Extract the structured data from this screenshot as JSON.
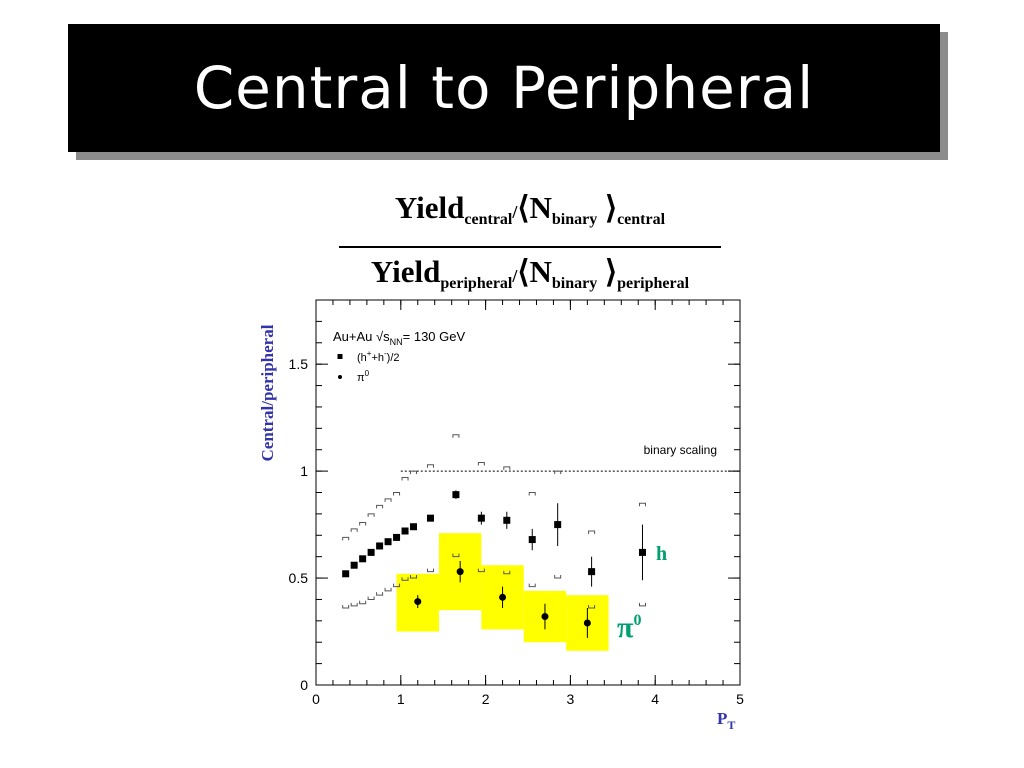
{
  "slide": {
    "title": "Central to Peripheral"
  },
  "formula": {
    "num_main": "Yield",
    "num_sub": "central",
    "num_slash": "/",
    "num_n": "⟨N",
    "num_n_sub": "binary",
    "num_close": " ⟩",
    "num_close_sub": "central",
    "den_main": "Yield",
    "den_sub": "peripheral",
    "den_slash": "/",
    "den_n": "⟨N",
    "den_n_sub": "binary",
    "den_close": " ⟩",
    "den_close_sub": "peripheral"
  },
  "chart_data": {
    "type": "scatter",
    "title": "",
    "ylabel": "Central/peripheral",
    "xlabel_main": "P",
    "xlabel_sub": "T",
    "xlim": [
      0,
      5
    ],
    "ylim": [
      0,
      1.8
    ],
    "x_ticks": [
      "0",
      "1",
      "2",
      "3",
      "4",
      "5"
    ],
    "y_ticks": [
      "0",
      "0.5",
      "1",
      "1.5"
    ],
    "legend": {
      "placement": "top-left",
      "header_prefix": "Au+Au √s",
      "header_sub": "NN",
      "header_suffix": "= 130 GeV",
      "entries": [
        {
          "marker": "square",
          "label_a": "(h",
          "sup_a": "+",
          "label_b": "+h",
          "sup_b": "-",
          "label_c": ")/2"
        },
        {
          "marker": "circle",
          "label_a": "π",
          "sup_a": "0",
          "label_b": "",
          "sup_b": "",
          "label_c": ""
        }
      ]
    },
    "binary_scaling": {
      "label": "binary scaling",
      "y": 1.0,
      "x_from": 1.0,
      "x_to": 5.0
    },
    "annotations": [
      {
        "text": "h",
        "sup": "",
        "color": "#00a070"
      },
      {
        "text": "π",
        "sup": "0",
        "color": "#00a070"
      }
    ],
    "colors": {
      "band": "#ffff00",
      "axis_label": "#3333aa",
      "annotation": "#00a070"
    },
    "series": [
      {
        "name": "(h++h-)/2",
        "marker": "square",
        "x": [
          0.35,
          0.45,
          0.55,
          0.65,
          0.75,
          0.85,
          0.95,
          1.05,
          1.15,
          1.35,
          1.65,
          1.95,
          2.25,
          2.55,
          2.85,
          3.25,
          3.85
        ],
        "y": [
          0.52,
          0.56,
          0.59,
          0.62,
          0.65,
          0.67,
          0.69,
          0.72,
          0.74,
          0.78,
          0.89,
          0.78,
          0.77,
          0.68,
          0.75,
          0.53,
          0.62
        ],
        "err": [
          0.0,
          0.0,
          0.0,
          0.0,
          0.0,
          0.0,
          0.0,
          0.01,
          0.01,
          0.01,
          0.02,
          0.03,
          0.04,
          0.05,
          0.1,
          0.07,
          0.13
        ],
        "sys_hi": [
          0.69,
          0.73,
          0.76,
          0.8,
          0.84,
          0.87,
          0.9,
          0.97,
          1.0,
          1.03,
          1.17,
          1.04,
          1.02,
          0.9,
          1.0,
          0.72,
          0.85
        ],
        "sys_lo": [
          0.36,
          0.37,
          0.38,
          0.4,
          0.42,
          0.44,
          0.46,
          0.49,
          0.5,
          0.53,
          0.6,
          0.53,
          0.52,
          0.46,
          0.5,
          0.36,
          0.37
        ]
      },
      {
        "name": "π0",
        "marker": "circle",
        "x": [
          1.2,
          1.7,
          2.2,
          2.7,
          3.2
        ],
        "y": [
          0.39,
          0.53,
          0.41,
          0.32,
          0.29
        ],
        "err": [
          0.03,
          0.05,
          0.05,
          0.06,
          0.07
        ],
        "band_x0": [
          0.95,
          1.45,
          1.95,
          2.45,
          2.95
        ],
        "band_x1": [
          1.45,
          1.95,
          2.45,
          2.95,
          3.45
        ],
        "band_lo": [
          0.25,
          0.35,
          0.26,
          0.2,
          0.16
        ],
        "band_hi": [
          0.52,
          0.71,
          0.56,
          0.44,
          0.42
        ]
      }
    ]
  }
}
